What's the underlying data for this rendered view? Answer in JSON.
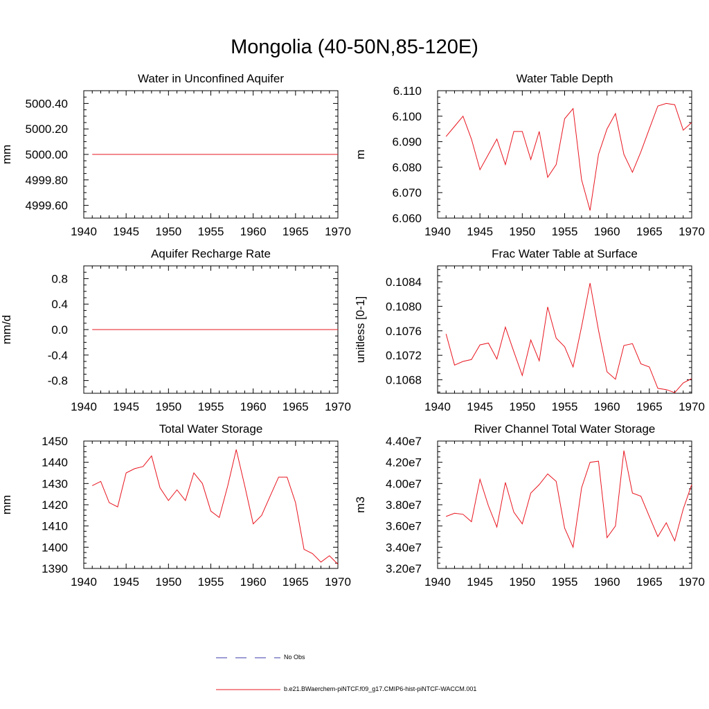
{
  "figure": {
    "title": "Mongolia (40-50N,85-120E)"
  },
  "legend": {
    "obs_label": "No Obs",
    "model_label": "b.e21.BWaerchem-piNTCF.f09_g17.CMIP6-hist-piNTCF-WACCM.001",
    "obs_color": "#3a3aa8",
    "model_color": "#e8141e"
  },
  "chart_data": [
    {
      "type": "line",
      "title": "Water in Unconfined Aquifer",
      "ylabel": "mm",
      "xlim": [
        1940,
        1970
      ],
      "ylim": [
        4999.5,
        5000.5
      ],
      "xticks": [
        1940,
        1945,
        1950,
        1955,
        1960,
        1965,
        1970
      ],
      "yticks": [
        4999.6,
        4999.8,
        5000.0,
        5000.2,
        5000.4
      ],
      "ytick_labels": [
        "4999.60",
        "4999.80",
        "5000.00",
        "5000.20",
        "5000.40"
      ],
      "x": [
        1941,
        1970
      ],
      "series": [
        {
          "values": [
            5000.0,
            5000.0
          ]
        }
      ]
    },
    {
      "type": "line",
      "title": "Water Table Depth",
      "ylabel": "m",
      "xlim": [
        1940,
        1970
      ],
      "ylim": [
        6.06,
        6.11
      ],
      "xticks": [
        1940,
        1945,
        1950,
        1955,
        1960,
        1965,
        1970
      ],
      "yticks": [
        6.06,
        6.07,
        6.08,
        6.09,
        6.1,
        6.11
      ],
      "ytick_labels": [
        "6.060",
        "6.070",
        "6.080",
        "6.090",
        "6.100",
        "6.110"
      ],
      "x": [
        1941,
        1942,
        1943,
        1944,
        1945,
        1946,
        1947,
        1948,
        1949,
        1950,
        1951,
        1952,
        1953,
        1954,
        1955,
        1956,
        1957,
        1958,
        1959,
        1960,
        1961,
        1962,
        1963,
        1964,
        1965,
        1966,
        1967,
        1968,
        1969,
        1970
      ],
      "series": [
        {
          "values": [
            6.092,
            6.096,
            6.1,
            6.091,
            6.079,
            6.085,
            6.091,
            6.081,
            6.094,
            6.094,
            6.083,
            6.094,
            6.076,
            6.081,
            6.099,
            6.103,
            6.075,
            6.063,
            6.085,
            6.095,
            6.101,
            6.085,
            6.078,
            6.086,
            6.095,
            6.104,
            6.105,
            6.1045,
            6.0945,
            6.0975
          ]
        }
      ]
    },
    {
      "type": "line",
      "title": "Aquifer Recharge Rate",
      "ylabel": "mm/d",
      "xlim": [
        1940,
        1970
      ],
      "ylim": [
        -1.0,
        1.0
      ],
      "xticks": [
        1940,
        1945,
        1950,
        1955,
        1960,
        1965,
        1970
      ],
      "yticks": [
        -0.8,
        -0.4,
        0.0,
        0.4,
        0.8
      ],
      "ytick_labels": [
        "-0.8",
        "-0.4",
        "0.0",
        "0.4",
        "0.8"
      ],
      "x": [
        1941,
        1970
      ],
      "series": [
        {
          "values": [
            0.0,
            0.0
          ]
        }
      ]
    },
    {
      "type": "line",
      "title": "Frac Water Table at Surface",
      "ylabel": "unitless [0-1]",
      "xlim": [
        1940,
        1970
      ],
      "ylim": [
        0.10658,
        0.10866
      ],
      "xticks": [
        1940,
        1945,
        1950,
        1955,
        1960,
        1965,
        1970
      ],
      "yticks": [
        0.1068,
        0.1072,
        0.1076,
        0.108,
        0.1084
      ],
      "ytick_labels": [
        "0.1068",
        "0.1072",
        "0.1076",
        "0.1080",
        "0.1084"
      ],
      "x": [
        1941,
        1942,
        1943,
        1944,
        1945,
        1946,
        1947,
        1948,
        1949,
        1950,
        1951,
        1952,
        1953,
        1954,
        1955,
        1956,
        1957,
        1958,
        1959,
        1960,
        1961,
        1962,
        1963,
        1964,
        1965,
        1966,
        1967,
        1968,
        1969,
        1970
      ],
      "series": [
        {
          "values": [
            0.10755,
            0.10704,
            0.1071,
            0.10713,
            0.10737,
            0.1074,
            0.10714,
            0.10766,
            0.10726,
            0.10687,
            0.10745,
            0.10711,
            0.10799,
            0.10748,
            0.10734,
            0.10701,
            0.10767,
            0.10838,
            0.10761,
            0.10693,
            0.10681,
            0.10736,
            0.10739,
            0.10706,
            0.10701,
            0.10666,
            0.10664,
            0.10659,
            0.10675,
            0.10682
          ]
        }
      ]
    },
    {
      "type": "line",
      "title": "Total Water Storage",
      "ylabel": "mm",
      "xlim": [
        1940,
        1970
      ],
      "ylim": [
        1390,
        1450
      ],
      "xticks": [
        1940,
        1945,
        1950,
        1955,
        1960,
        1965,
        1970
      ],
      "yticks": [
        1390,
        1400,
        1410,
        1420,
        1430,
        1440,
        1450
      ],
      "ytick_labels": [
        "1390",
        "1400",
        "1410",
        "1420",
        "1430",
        "1440",
        "1450"
      ],
      "x": [
        1941,
        1942,
        1943,
        1944,
        1945,
        1946,
        1947,
        1948,
        1949,
        1950,
        1951,
        1952,
        1953,
        1954,
        1955,
        1956,
        1957,
        1958,
        1959,
        1960,
        1961,
        1962,
        1963,
        1964,
        1965,
        1966,
        1967,
        1968,
        1969,
        1970
      ],
      "series": [
        {
          "values": [
            1429,
            1431,
            1421,
            1419,
            1435,
            1437,
            1438,
            1443,
            1428,
            1422,
            1427,
            1422,
            1435,
            1430,
            1417,
            1414,
            1429,
            1446,
            1429,
            1411,
            1415,
            1424,
            1433,
            1433,
            1421,
            1399,
            1397,
            1393,
            1396,
            1392
          ]
        }
      ]
    },
    {
      "type": "line",
      "title": "River Channel Total Water Storage",
      "ylabel": "m3",
      "xlim": [
        1940,
        1970
      ],
      "ylim": [
        32000000,
        44000000
      ],
      "xticks": [
        1940,
        1945,
        1950,
        1955,
        1960,
        1965,
        1970
      ],
      "yticks": [
        32000000,
        34000000,
        36000000,
        38000000,
        40000000,
        42000000,
        44000000
      ],
      "ytick_labels": [
        "3.20e7",
        "3.40e7",
        "3.60e7",
        "3.80e7",
        "4.00e7",
        "4.20e7",
        "4.40e7"
      ],
      "x": [
        1941,
        1942,
        1943,
        1944,
        1945,
        1946,
        1947,
        1948,
        1949,
        1950,
        1951,
        1952,
        1953,
        1954,
        1955,
        1956,
        1957,
        1958,
        1959,
        1960,
        1961,
        1962,
        1963,
        1964,
        1965,
        1966,
        1967,
        1968,
        1969,
        1970
      ],
      "series": [
        {
          "values": [
            36900000,
            37200000,
            37100000,
            36400000,
            40400000,
            37900000,
            35900000,
            40100000,
            37300000,
            36200000,
            39100000,
            39900000,
            40900000,
            40200000,
            35800000,
            34000000,
            39600000,
            42000000,
            42100000,
            34900000,
            36000000,
            43100000,
            39100000,
            38800000,
            36900000,
            35000000,
            36300000,
            34600000,
            37600000,
            39900000
          ]
        }
      ]
    }
  ]
}
